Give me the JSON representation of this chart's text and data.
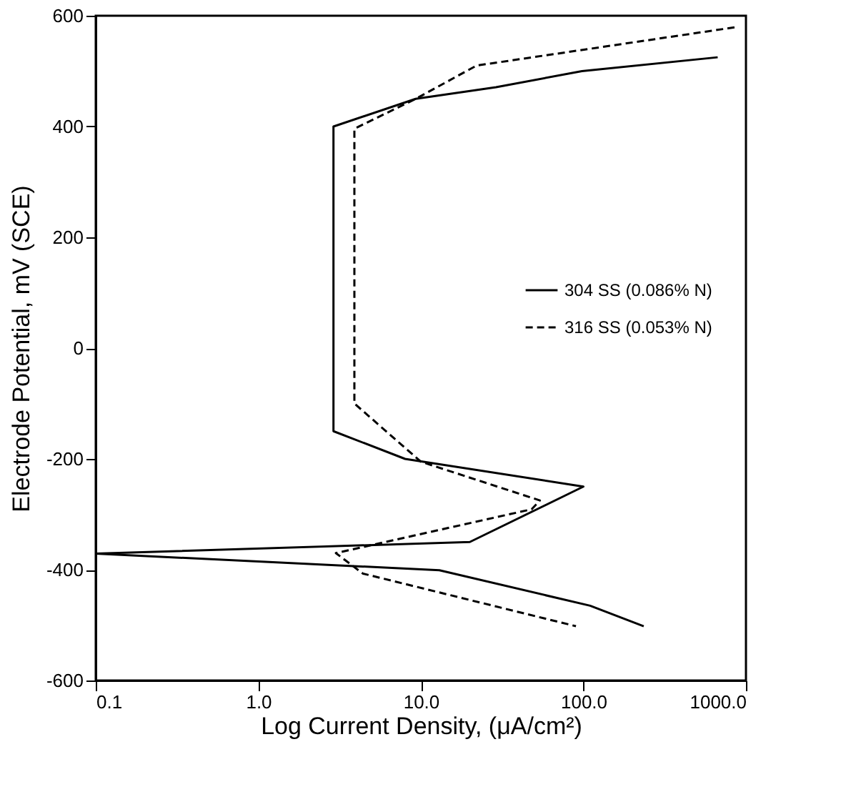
{
  "chart_data": {
    "type": "line",
    "xlabel": "Log Current Density, (μA/cm²)",
    "ylabel": "Electrode Potential, mV (SCE)",
    "log": "x",
    "xlim": [
      0.1,
      1000
    ],
    "xticks": [
      0.1,
      {
        "value": 1,
        "label": "1.0"
      },
      {
        "value": 10,
        "label": "10.0"
      },
      {
        "value": 100,
        "label": "100.0"
      },
      {
        "value": 1000,
        "label": "1000.0"
      }
    ],
    "ylim": [
      -600,
      600
    ],
    "yticks": [
      -600,
      -400,
      -200,
      0,
      200,
      400,
      600
    ],
    "grid": false,
    "legend": "right",
    "marker": "none",
    "series": [
      {
        "name": "304 SS (0.086% N)",
        "color": "#000000",
        "line_style": "solid",
        "x": [
          670,
          98,
          29,
          9.3,
          2.9,
          2.9,
          8,
          100,
          20,
          0.1,
          13,
          110,
          235
        ],
        "values": [
          525,
          500,
          471,
          450,
          400,
          -150,
          -200,
          -250,
          -350,
          -371,
          -401,
          -465,
          -502
        ]
      },
      {
        "name": "316 SS (0.053% N)",
        "color": "#000000",
        "line_style": "dashed",
        "x": [
          850,
          22,
          9.3,
          3.9,
          3.9,
          10,
          54,
          48,
          3,
          4.4,
          90
        ],
        "values": [
          579,
          510,
          450,
          396,
          -100,
          -205,
          -275,
          -291,
          -370,
          -407,
          -502
        ]
      }
    ]
  }
}
